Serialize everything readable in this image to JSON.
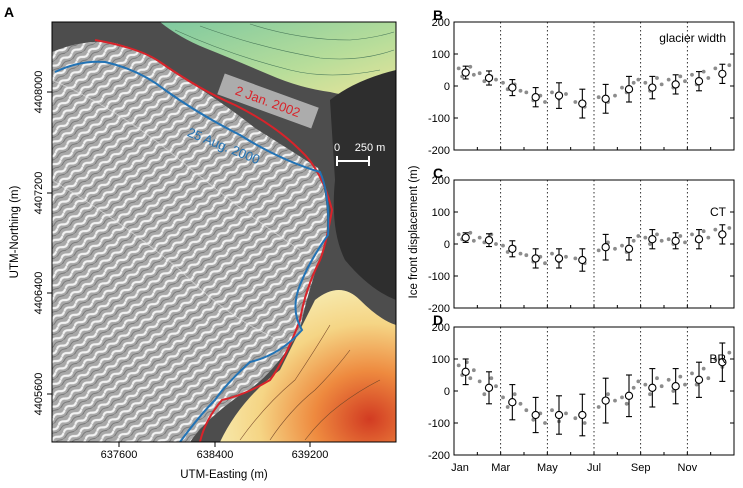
{
  "colors": {
    "red_line": "#d9232a",
    "blue_line": "#2273b5",
    "point_gray": "#8c8c8c",
    "ice_bg": "#9a9a9a",
    "water_dark": "#3a3a3a",
    "terrain_green": "#8fcf9e",
    "terrain_yellow": "#f3e08e",
    "terrain_red": "#d73a23"
  },
  "map": {
    "letter": "A",
    "xlabel": "UTM-Easting (m)",
    "ylabel": "UTM-Northing (m)",
    "xticks": [
      "637600",
      "638400",
      "639200"
    ],
    "yticks": [
      "4408000",
      "4407200",
      "4406400",
      "4405600"
    ],
    "label_red": "2 Jan. 2002",
    "label_blue": "25 Aug. 2000",
    "scalebar_zero": "0",
    "scalebar_label": "250 m"
  },
  "shared": {
    "ylabel": "Ice front displacement (m)",
    "xticks": [
      "Jan",
      "Mar",
      "May",
      "Jul",
      "Sep",
      "Nov"
    ]
  },
  "chart_data": [
    {
      "type": "scatter",
      "letter": "B",
      "annotation": "glacier width",
      "ylim": [
        -200,
        200
      ],
      "yticks": [
        200,
        100,
        0,
        -100,
        -200
      ],
      "xlim": [
        0,
        12
      ],
      "means_x": [
        0.5,
        1.5,
        2.5,
        3.5,
        4.5,
        5.5,
        6.5,
        7.5,
        8.5,
        9.5,
        10.5,
        11.5
      ],
      "means_y": [
        42,
        25,
        -5,
        -35,
        -30,
        -55,
        -40,
        -10,
        -5,
        5,
        15,
        38
      ],
      "err": [
        20,
        22,
        25,
        30,
        40,
        45,
        45,
        40,
        35,
        30,
        30,
        30
      ],
      "points": [
        [
          0.2,
          55
        ],
        [
          0.35,
          30
        ],
        [
          0.55,
          45
        ],
        [
          0.7,
          60
        ],
        [
          0.85,
          35
        ],
        [
          1.1,
          40
        ],
        [
          1.3,
          15
        ],
        [
          1.6,
          30
        ],
        [
          1.8,
          20
        ],
        [
          2.1,
          10
        ],
        [
          2.3,
          -10
        ],
        [
          2.6,
          5
        ],
        [
          2.85,
          -15
        ],
        [
          3.1,
          -20
        ],
        [
          3.4,
          -45
        ],
        [
          3.7,
          -30
        ],
        [
          3.9,
          -50
        ],
        [
          4.2,
          -20
        ],
        [
          4.5,
          -40
        ],
        [
          4.8,
          -25
        ],
        [
          5.2,
          -50
        ],
        [
          5.6,
          -65
        ],
        [
          6.2,
          -35
        ],
        [
          6.6,
          -50
        ],
        [
          6.9,
          -30
        ],
        [
          7.2,
          -5
        ],
        [
          7.4,
          -20
        ],
        [
          7.7,
          10
        ],
        [
          7.9,
          20
        ],
        [
          8.2,
          10
        ],
        [
          8.4,
          -15
        ],
        [
          8.7,
          25
        ],
        [
          8.9,
          5
        ],
        [
          9.2,
          20
        ],
        [
          9.4,
          -5
        ],
        [
          9.7,
          30
        ],
        [
          9.9,
          15
        ],
        [
          10.2,
          35
        ],
        [
          10.4,
          5
        ],
        [
          10.7,
          45
        ],
        [
          10.9,
          25
        ],
        [
          11.2,
          55
        ],
        [
          11.5,
          40
        ],
        [
          11.8,
          65
        ]
      ]
    },
    {
      "type": "scatter",
      "letter": "C",
      "annotation": "CT",
      "ylim": [
        -200,
        200
      ],
      "yticks": [
        200,
        100,
        0,
        -100,
        -200
      ],
      "xlim": [
        0,
        12
      ],
      "means_x": [
        0.5,
        1.5,
        2.5,
        3.5,
        4.5,
        5.5,
        6.5,
        7.5,
        8.5,
        9.5,
        10.5,
        11.5
      ],
      "means_y": [
        20,
        12,
        -15,
        -45,
        -45,
        -50,
        -10,
        -15,
        15,
        10,
        15,
        30
      ],
      "err": [
        15,
        20,
        25,
        30,
        30,
        35,
        40,
        35,
        30,
        25,
        30,
        30
      ],
      "points": [
        [
          0.2,
          30
        ],
        [
          0.35,
          15
        ],
        [
          0.55,
          25
        ],
        [
          0.7,
          35
        ],
        [
          0.85,
          10
        ],
        [
          1.1,
          20
        ],
        [
          1.3,
          5
        ],
        [
          1.6,
          30
        ],
        [
          1.8,
          0
        ],
        [
          2.1,
          -5
        ],
        [
          2.3,
          -25
        ],
        [
          2.6,
          -10
        ],
        [
          2.85,
          -30
        ],
        [
          3.1,
          -35
        ],
        [
          3.4,
          -55
        ],
        [
          3.7,
          -40
        ],
        [
          3.9,
          -60
        ],
        [
          4.2,
          -30
        ],
        [
          4.5,
          -55
        ],
        [
          4.8,
          -40
        ],
        [
          5.2,
          -45
        ],
        [
          5.6,
          -60
        ],
        [
          6.2,
          -20
        ],
        [
          6.6,
          5
        ],
        [
          6.9,
          -15
        ],
        [
          7.2,
          -5
        ],
        [
          7.4,
          -25
        ],
        [
          7.7,
          10
        ],
        [
          7.9,
          25
        ],
        [
          8.2,
          20
        ],
        [
          8.4,
          0
        ],
        [
          8.7,
          30
        ],
        [
          8.9,
          10
        ],
        [
          9.2,
          15
        ],
        [
          9.4,
          0
        ],
        [
          9.7,
          25
        ],
        [
          9.9,
          5
        ],
        [
          10.2,
          30
        ],
        [
          10.4,
          10
        ],
        [
          10.7,
          40
        ],
        [
          10.9,
          20
        ],
        [
          11.2,
          45
        ],
        [
          11.5,
          25
        ],
        [
          11.8,
          50
        ]
      ]
    },
    {
      "type": "scatter",
      "letter": "D",
      "annotation": "BR",
      "ylim": [
        -200,
        200
      ],
      "yticks": [
        200,
        100,
        0,
        -100,
        -200
      ],
      "xlim": [
        0,
        12
      ],
      "means_x": [
        0.5,
        1.5,
        2.5,
        3.5,
        4.5,
        5.5,
        6.5,
        7.5,
        8.5,
        9.5,
        10.5,
        11.5
      ],
      "means_y": [
        60,
        10,
        -35,
        -75,
        -75,
        -75,
        -30,
        -15,
        10,
        15,
        35,
        90
      ],
      "err": [
        40,
        50,
        55,
        55,
        60,
        65,
        70,
        65,
        60,
        55,
        55,
        60
      ],
      "points": [
        [
          0.2,
          80
        ],
        [
          0.35,
          50
        ],
        [
          0.55,
          90
        ],
        [
          0.7,
          40
        ],
        [
          0.85,
          65
        ],
        [
          1.1,
          30
        ],
        [
          1.3,
          -10
        ],
        [
          1.6,
          40
        ],
        [
          1.8,
          15
        ],
        [
          2.1,
          -20
        ],
        [
          2.3,
          -50
        ],
        [
          2.6,
          -10
        ],
        [
          2.85,
          -40
        ],
        [
          3.1,
          -60
        ],
        [
          3.4,
          -90
        ],
        [
          3.7,
          -70
        ],
        [
          3.9,
          -100
        ],
        [
          4.2,
          -60
        ],
        [
          4.5,
          -95
        ],
        [
          4.8,
          -70
        ],
        [
          5.2,
          -85
        ],
        [
          5.6,
          -100
        ],
        [
          6.2,
          -50
        ],
        [
          6.6,
          -10
        ],
        [
          6.9,
          -30
        ],
        [
          7.2,
          -20
        ],
        [
          7.4,
          -40
        ],
        [
          7.7,
          10
        ],
        [
          7.9,
          30
        ],
        [
          8.2,
          20
        ],
        [
          8.4,
          -10
        ],
        [
          8.7,
          40
        ],
        [
          8.9,
          15
        ],
        [
          9.2,
          35
        ],
        [
          9.4,
          0
        ],
        [
          9.7,
          45
        ],
        [
          9.9,
          20
        ],
        [
          10.2,
          55
        ],
        [
          10.4,
          20
        ],
        [
          10.7,
          70
        ],
        [
          10.9,
          40
        ],
        [
          11.2,
          100
        ],
        [
          11.5,
          75
        ],
        [
          11.8,
          120
        ]
      ]
    }
  ]
}
